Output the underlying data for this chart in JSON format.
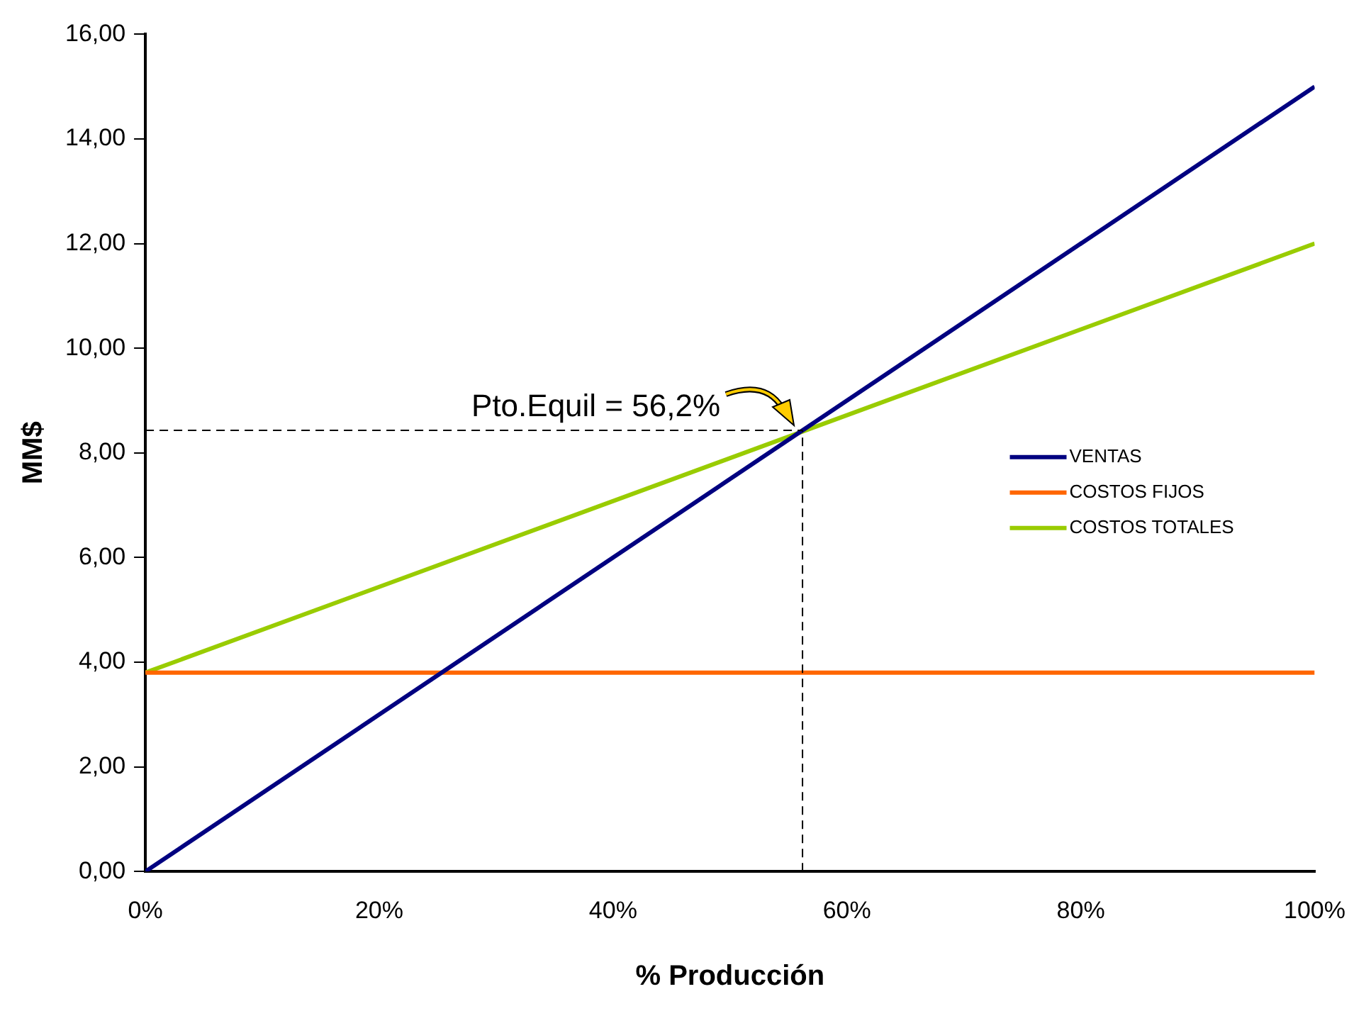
{
  "chart_data": {
    "type": "line",
    "xlabel": "% Producción",
    "ylabel": "MM$",
    "x": [
      0,
      100
    ],
    "series": [
      {
        "name": "VENTAS",
        "color": "#000080",
        "values": [
          0,
          15
        ]
      },
      {
        "name": "COSTOS FIJOS",
        "color": "#ff6600",
        "values": [
          3.8,
          3.8
        ]
      },
      {
        "name": "COSTOS TOTALES",
        "color": "#99cc00",
        "values": [
          3.8,
          12.0
        ]
      }
    ],
    "xlim": [
      0,
      100
    ],
    "xticks": [
      {
        "value": 0,
        "label": "0%"
      },
      {
        "value": 20,
        "label": "20%"
      },
      {
        "value": 40,
        "label": "40%"
      },
      {
        "value": 60,
        "label": "60%"
      },
      {
        "value": 80,
        "label": "80%"
      },
      {
        "value": 100,
        "label": "100%"
      }
    ],
    "ylim": [
      0,
      16
    ],
    "yticks": [
      {
        "value": 0,
        "label": "0,00"
      },
      {
        "value": 2,
        "label": "2,00"
      },
      {
        "value": 4,
        "label": "4,00"
      },
      {
        "value": 6,
        "label": "6,00"
      },
      {
        "value": 8,
        "label": "8,00"
      },
      {
        "value": 10,
        "label": "10,00"
      },
      {
        "value": 12,
        "label": "12,00"
      },
      {
        "value": 14,
        "label": "14,00"
      },
      {
        "value": 16,
        "label": "16,00"
      }
    ],
    "ref_lines": [
      {
        "axis": "x",
        "value": 56.2,
        "line_style": "dashed",
        "color": "#000000"
      },
      {
        "axis": "y",
        "value": 8.43,
        "line_style": "dashed",
        "color": "#000000"
      }
    ],
    "annotations": [
      {
        "text": "Pto.Equil = 56,2%",
        "x": 56.2,
        "y": 8.43
      }
    ],
    "grid": false,
    "legend": "right",
    "marker": "none",
    "line_style": "solid"
  }
}
